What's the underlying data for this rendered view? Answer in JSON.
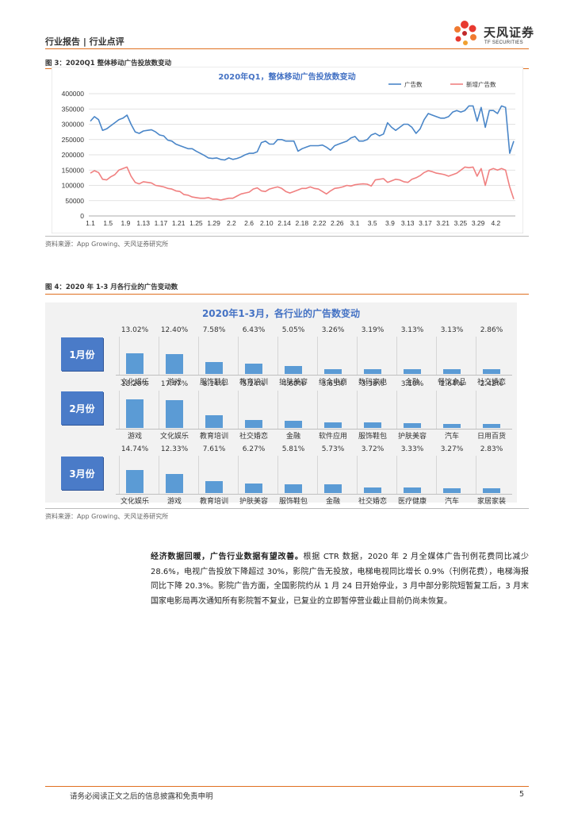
{
  "header": {
    "section": "行业报告 | 行业点评",
    "logo_cn": "天风证券",
    "logo_en": "TF SECURITIES"
  },
  "figure3": {
    "caption": "图 3：2020Q1 整体移动广告投放数变动",
    "source": "资料来源：App Growing、天风证券研究所"
  },
  "chart_data": [
    {
      "type": "line",
      "title": "2020年Q1，整体移动广告投放数变动",
      "x_ticks": [
        "1.1",
        "1.5",
        "1.9",
        "1.13",
        "1.17",
        "1.21",
        "1.25",
        "1.29",
        "2.2",
        "2.6",
        "2.10",
        "2.14",
        "2.18",
        "2.22",
        "2.26",
        "3.1",
        "3.5",
        "3.9",
        "3.13",
        "3.17",
        "3.21",
        "3.25",
        "3.29",
        "4.2"
      ],
      "x_start": "1.1",
      "ylim": [
        0,
        400000
      ],
      "y_ticks": [
        0,
        50000,
        100000,
        150000,
        200000,
        250000,
        300000,
        350000,
        400000
      ],
      "legend": "top-right",
      "grid": true,
      "series": [
        {
          "name": "广告数",
          "color": "#4a86c8",
          "values": [
            310000,
            325000,
            315000,
            280000,
            285000,
            295000,
            305000,
            315000,
            320000,
            330000,
            300000,
            275000,
            270000,
            278000,
            280000,
            282000,
            275000,
            265000,
            262000,
            248000,
            245000,
            235000,
            230000,
            225000,
            220000,
            220000,
            212000,
            205000,
            198000,
            190000,
            188000,
            190000,
            185000,
            183000,
            190000,
            185000,
            188000,
            193000,
            200000,
            205000,
            205000,
            210000,
            240000,
            245000,
            235000,
            235000,
            250000,
            250000,
            245000,
            245000,
            245000,
            212000,
            220000,
            225000,
            230000,
            230000,
            230000,
            232000,
            225000,
            215000,
            230000,
            235000,
            240000,
            245000,
            255000,
            260000,
            245000,
            245000,
            250000,
            265000,
            270000,
            262000,
            268000,
            305000,
            290000,
            280000,
            290000,
            300000,
            300000,
            290000,
            270000,
            285000,
            315000,
            335000,
            330000,
            325000,
            320000,
            320000,
            325000,
            340000,
            345000,
            340000,
            345000,
            360000,
            360000,
            310000,
            355000,
            290000,
            345000,
            345000,
            335000,
            360000,
            355000,
            205000,
            245000
          ]
        },
        {
          "name": "新增广告数",
          "color": "#f08080",
          "values": [
            140000,
            148000,
            142000,
            120000,
            118000,
            128000,
            135000,
            150000,
            155000,
            160000,
            130000,
            110000,
            105000,
            112000,
            110000,
            108000,
            100000,
            98000,
            95000,
            90000,
            88000,
            82000,
            80000,
            70000,
            68000,
            62000,
            60000,
            58000,
            58000,
            60000,
            55000,
            55000,
            52000,
            55000,
            58000,
            58000,
            65000,
            72000,
            75000,
            78000,
            88000,
            92000,
            82000,
            80000,
            88000,
            92000,
            95000,
            90000,
            80000,
            75000,
            80000,
            85000,
            90000,
            90000,
            95000,
            90000,
            88000,
            80000,
            72000,
            82000,
            90000,
            92000,
            95000,
            100000,
            98000,
            102000,
            104000,
            105000,
            104000,
            98000,
            118000,
            120000,
            122000,
            110000,
            115000,
            120000,
            118000,
            112000,
            110000,
            120000,
            125000,
            132000,
            142000,
            148000,
            145000,
            140000,
            138000,
            135000,
            130000,
            135000,
            140000,
            150000,
            160000,
            158000,
            160000,
            130000,
            155000,
            100000,
            150000,
            155000,
            150000,
            155000,
            150000,
            95000,
            55000
          ]
        }
      ]
    },
    {
      "type": "bar",
      "title": "2020年1-3月，各行业的广告数变动",
      "groups": [
        {
          "name": "1月份",
          "categories": [
            "文化娱乐",
            "游戏",
            "服饰鞋包",
            "教育培训",
            "护肤美容",
            "综合电商",
            "数码家电",
            "金融",
            "餐饮食品",
            "社交婚恋"
          ],
          "values": [
            13.02,
            12.4,
            7.58,
            6.43,
            5.05,
            3.26,
            3.19,
            3.13,
            3.13,
            2.86
          ],
          "labels": [
            "13.02%",
            "12.40%",
            "7.58%",
            "6.43%",
            "5.05%",
            "3.26%",
            "3.19%",
            "3.13%",
            "3.13%",
            "2.86%"
          ]
        },
        {
          "name": "2月份",
          "categories": [
            "游戏",
            "文化娱乐",
            "教育培训",
            "社交婚恋",
            "金融",
            "软件应用",
            "服饰鞋包",
            "护肤美容",
            "汽车",
            "日用百货"
          ],
          "values": [
            18.2,
            17.47,
            8.14,
            5.24,
            4.6,
            3.63,
            3.38,
            3.1,
            2.64,
            2.42
          ],
          "labels": [
            "18.20%",
            "17.47%",
            "8.14%",
            "5.24%",
            "4.60%",
            "3.63%",
            "3.38%",
            "3.10%",
            "2.64%",
            "2.42%"
          ]
        },
        {
          "name": "3月份",
          "categories": [
            "文化娱乐",
            "游戏",
            "教育培训",
            "护肤美容",
            "服饰鞋包",
            "金融",
            "社交婚恋",
            "医疗健康",
            "汽车",
            "家居家装"
          ],
          "values": [
            14.74,
            12.33,
            7.61,
            6.27,
            5.81,
            5.73,
            3.72,
            3.33,
            3.27,
            2.83
          ],
          "labels": [
            "14.74%",
            "12.33%",
            "7.61%",
            "6.27%",
            "5.81%",
            "5.73%",
            "3.72%",
            "3.33%",
            "3.27%",
            "2.83%"
          ]
        }
      ]
    }
  ],
  "figure4": {
    "caption": "图 4：2020 年 1-3 月各行业的广告变动数",
    "source": "资料来源：App Growing、天风证券研究所"
  },
  "paragraph": {
    "lead": "经济数据回暖，广告行业数据有望改善。",
    "body": "根据 CTR 数据，2020 年 2 月全媒体广告刊例花费同比减少 28.6%，电视广告投放下降超过 30%，影院广告无投放，电梯电视同比增长 0.9%（刊例花费），电梯海报同比下降 20.3%。影院广告方面，全国影院约从 1 月 24 日开始停业，3 月中部分影院短暂复工后，3 月末国家电影局再次通知所有影院暂不复业，已复业的立即暂停营业截止目前仍尚未恢复。"
  },
  "footer": {
    "disclaimer": "请务必阅读正文之后的信息披露和免责申明",
    "page": "5"
  }
}
